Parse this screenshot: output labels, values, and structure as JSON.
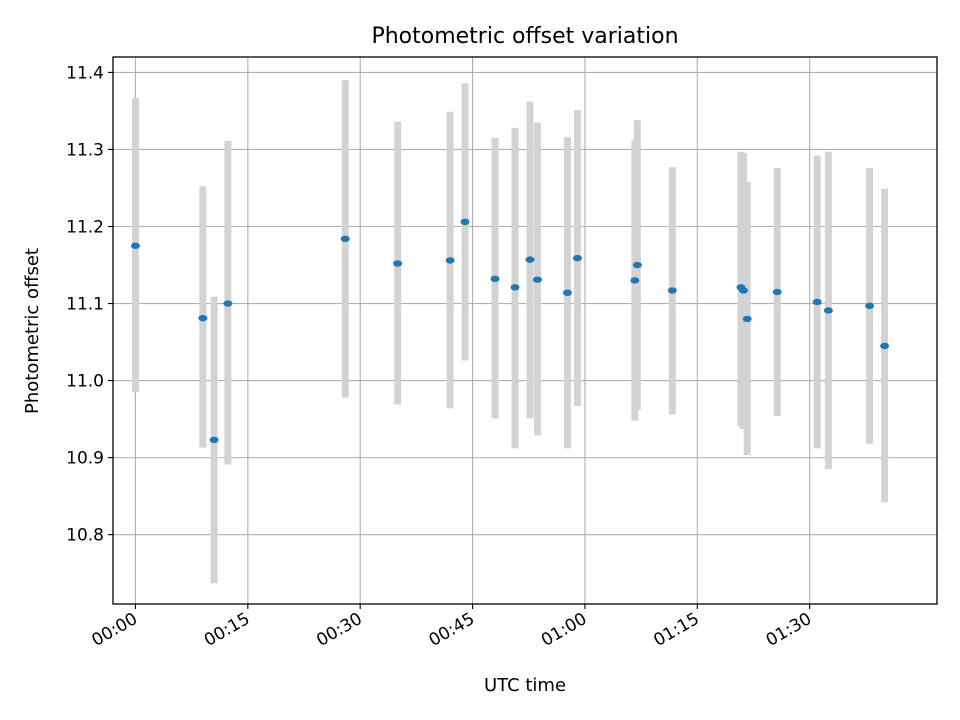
{
  "chart_data": {
    "type": "scatter",
    "title": "Photometric offset variation",
    "xlabel": "UTC time",
    "ylabel": "Photometric offset",
    "xlim": [
      "23:57:00",
      "01:47:00"
    ],
    "ylim": [
      10.71,
      11.42
    ],
    "grid": true,
    "x_ticks": [
      "00:00",
      "00:15",
      "00:30",
      "00:45",
      "01:00",
      "01:15",
      "01:30"
    ],
    "y_ticks": [
      "10.8",
      "10.9",
      "11.0",
      "11.1",
      "11.2",
      "11.3",
      "11.4"
    ],
    "errorbar_color": "#d3d3d3",
    "marker_color": "#1f77b4",
    "series": [
      {
        "points": [
          {
            "x": "00:00:00",
            "y": 11.175,
            "ylow": 10.985,
            "yhigh": 11.367
          },
          {
            "x": "00:09:00",
            "y": 11.081,
            "ylow": 10.913,
            "yhigh": 11.252
          },
          {
            "x": "00:10:30",
            "y": 10.923,
            "ylow": 10.737,
            "yhigh": 11.109
          },
          {
            "x": "00:12:20",
            "y": 11.1,
            "ylow": 10.891,
            "yhigh": 11.311
          },
          {
            "x": "00:28:00",
            "y": 11.184,
            "ylow": 10.978,
            "yhigh": 11.39
          },
          {
            "x": "00:35:00",
            "y": 11.152,
            "ylow": 10.969,
            "yhigh": 11.336
          },
          {
            "x": "00:42:00",
            "y": 11.156,
            "ylow": 10.964,
            "yhigh": 11.349
          },
          {
            "x": "00:44:00",
            "y": 11.206,
            "ylow": 11.026,
            "yhigh": 11.386
          },
          {
            "x": "00:48:00",
            "y": 11.132,
            "ylow": 10.951,
            "yhigh": 11.315
          },
          {
            "x": "00:50:40",
            "y": 11.121,
            "ylow": 10.912,
            "yhigh": 11.328
          },
          {
            "x": "00:52:40",
            "y": 11.157,
            "ylow": 10.951,
            "yhigh": 11.362
          },
          {
            "x": "00:53:40",
            "y": 11.131,
            "ylow": 10.929,
            "yhigh": 11.335
          },
          {
            "x": "00:57:40",
            "y": 11.114,
            "ylow": 10.912,
            "yhigh": 11.316
          },
          {
            "x": "00:59:00",
            "y": 11.159,
            "ylow": 10.967,
            "yhigh": 11.351
          },
          {
            "x": "01:06:40",
            "y": 11.13,
            "ylow": 10.948,
            "yhigh": 11.312
          },
          {
            "x": "01:07:00",
            "y": 11.15,
            "ylow": 10.962,
            "yhigh": 11.338
          },
          {
            "x": "01:11:40",
            "y": 11.117,
            "ylow": 10.956,
            "yhigh": 11.277
          },
          {
            "x": "01:20:50",
            "y": 11.121,
            "ylow": 10.941,
            "yhigh": 11.297
          },
          {
            "x": "01:21:10",
            "y": 11.117,
            "ylow": 10.937,
            "yhigh": 11.295
          },
          {
            "x": "01:21:40",
            "y": 11.08,
            "ylow": 10.903,
            "yhigh": 11.258
          },
          {
            "x": "01:25:40",
            "y": 11.115,
            "ylow": 10.954,
            "yhigh": 11.276
          },
          {
            "x": "01:31:00",
            "y": 11.102,
            "ylow": 10.912,
            "yhigh": 11.292
          },
          {
            "x": "01:32:30",
            "y": 11.091,
            "ylow": 10.885,
            "yhigh": 11.297
          },
          {
            "x": "01:38:00",
            "y": 11.097,
            "ylow": 10.918,
            "yhigh": 11.276
          },
          {
            "x": "01:40:00",
            "y": 11.045,
            "ylow": 10.842,
            "yhigh": 11.249
          }
        ]
      }
    ]
  }
}
